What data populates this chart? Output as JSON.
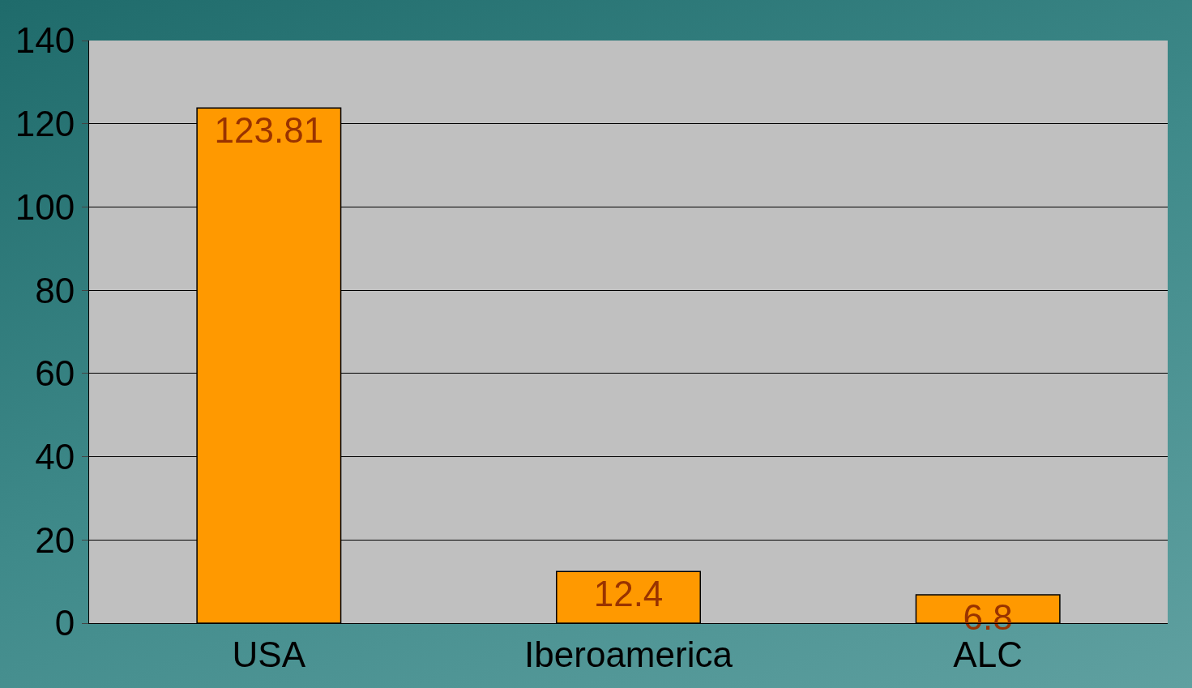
{
  "chart_data": {
    "type": "bar",
    "categories": [
      "USA",
      "Iberoamerica",
      "ALC"
    ],
    "values": [
      123.81,
      12.4,
      6.8
    ],
    "color": "#ff9900",
    "ylim": [
      0,
      140
    ],
    "yticks": [
      0,
      20,
      40,
      60,
      80,
      100,
      120,
      140
    ],
    "grid": "y",
    "data_labels": true
  }
}
